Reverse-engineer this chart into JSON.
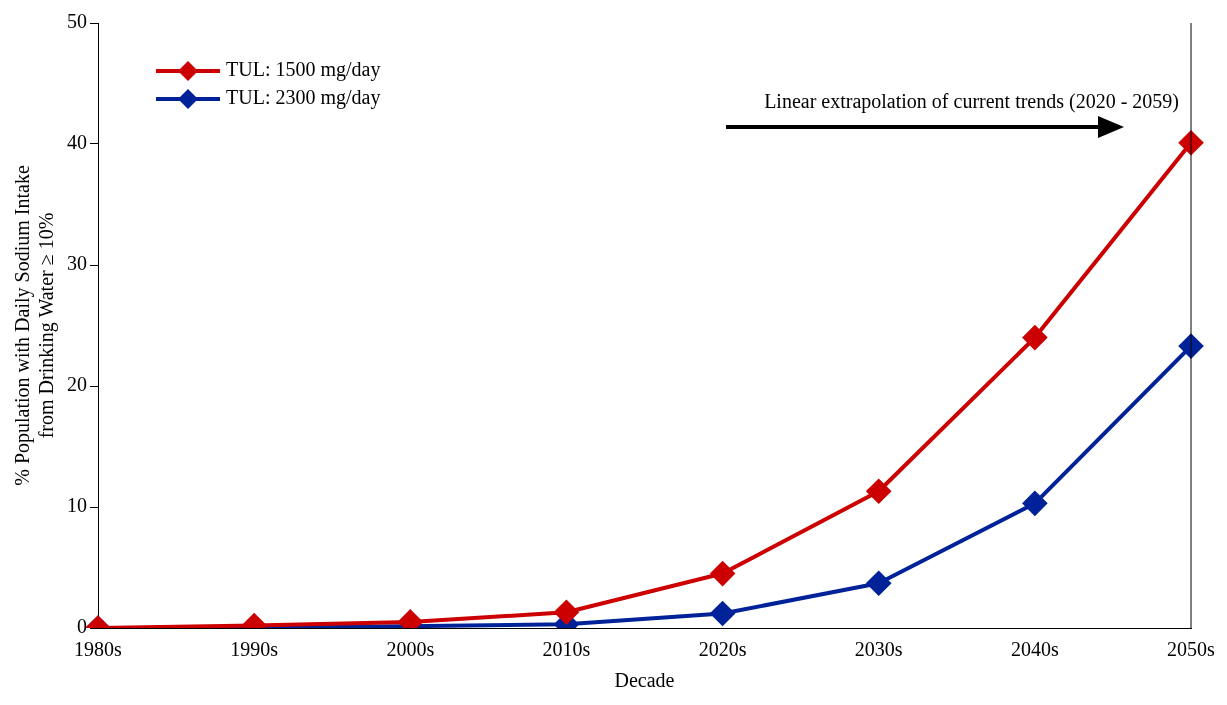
{
  "chart_data": {
    "type": "line",
    "xlabel": "Decade",
    "ylabel": "% Population with Daily Sodium Intake\nfrom Drinking Water ≥ 10%",
    "categories": [
      "1980s",
      "1990s",
      "2000s",
      "2010s",
      "2020s",
      "2030s",
      "2040s",
      "2050s"
    ],
    "series": [
      {
        "name": "TUL: 1500 mg/day",
        "color": "#cc0000",
        "values": [
          0,
          0.2,
          0.5,
          1.3,
          4.5,
          11.3,
          24.0,
          40.1
        ]
      },
      {
        "name": "TUL: 2300 mg/day",
        "color": "#002299",
        "values": [
          0,
          0,
          null,
          0.3,
          1.2,
          3.7,
          10.3,
          23.3
        ]
      }
    ],
    "ylim": [
      0,
      50
    ],
    "yticks": [
      0,
      10,
      20,
      30,
      40,
      50
    ],
    "grid": false,
    "legend": "top left",
    "marker": "diamond",
    "line_style": "solid",
    "annotations": [
      "Linear extrapolation of current trends (2020 - 2059)"
    ]
  }
}
